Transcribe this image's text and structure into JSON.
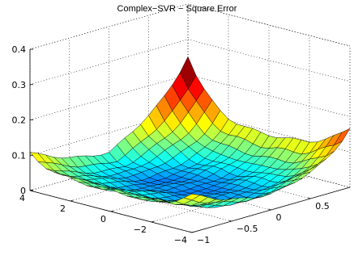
{
  "chart_data": {
    "type": "surface",
    "title": "Complex−SVR − Square Error",
    "xlabel": "",
    "ylabel": "",
    "zlabel": "",
    "axes": {
      "x": {
        "range": [
          -4,
          4
        ],
        "ticks": [
          4,
          2,
          0,
          -2,
          -4
        ],
        "tick_labels": [
          "4",
          "2",
          "0",
          "−2",
          "−4"
        ]
      },
      "y": {
        "range": [
          -1,
          1
        ],
        "ticks": [
          -1,
          -0.5,
          0,
          0.5
        ],
        "tick_labels": [
          "−1",
          "−0.5",
          "0",
          "0.5"
        ]
      },
      "z": {
        "range": [
          0,
          0.4
        ],
        "ticks": [
          0,
          0.1,
          0.2,
          0.3,
          0.4
        ],
        "tick_labels": [
          "0",
          "0.1",
          "0.2",
          "0.3",
          "0.4"
        ]
      }
    },
    "grid": true,
    "colormap": "jet",
    "surface": {
      "x_samples": 21,
      "y_samples": 21,
      "shape": "bowl: error lowest near x=0,y=0, rising towards edges; highest (~0.22) at x=4,y=1 corner"
    },
    "colors": {
      "low": "#1a3cff",
      "mid": "#66dd66",
      "high": "#ff2a00",
      "edge": "#000000"
    }
  }
}
